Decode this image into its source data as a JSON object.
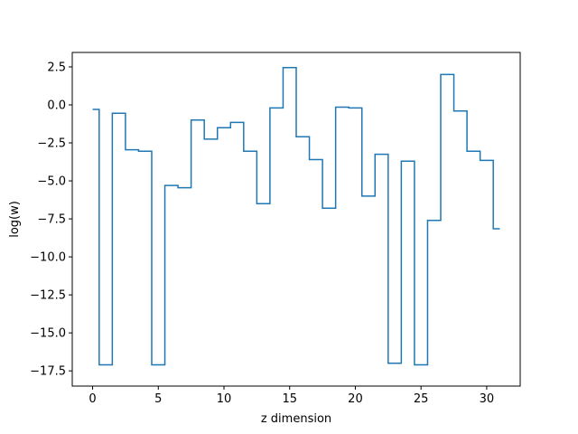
{
  "chart_data": {
    "type": "line",
    "drawstyle": "steps-mid",
    "xlabel": "z dimension",
    "ylabel": "log(w)",
    "xlim": [
      -1.55,
      32.55
    ],
    "ylim": [
      -18.5,
      3.45
    ],
    "xticks": [
      0,
      5,
      10,
      15,
      20,
      25,
      30
    ],
    "xtick_labels": [
      "0",
      "5",
      "10",
      "15",
      "20",
      "25",
      "30"
    ],
    "yticks": [
      2.5,
      0.0,
      -2.5,
      -5.0,
      -7.5,
      -10.0,
      -12.5,
      -15.0,
      -17.5
    ],
    "ytick_labels": [
      "2.5",
      "0.0",
      "−2.5",
      "−5.0",
      "−7.5",
      "−10.0",
      "−12.5",
      "−15.0",
      "−17.5"
    ],
    "grid": false,
    "color": "#1f77b4",
    "series": [
      {
        "x": [
          0,
          1,
          2,
          3,
          4,
          5,
          6,
          7,
          8,
          9,
          10,
          11,
          12,
          13,
          14,
          15,
          16,
          17,
          18,
          19,
          20,
          21,
          22,
          23,
          24,
          25,
          26,
          27,
          28,
          29,
          30,
          31
        ],
        "values": [
          -0.3,
          -17.1,
          -0.55,
          -2.95,
          -3.05,
          -17.1,
          -5.3,
          -5.45,
          -1.0,
          -2.25,
          -1.5,
          -1.15,
          -3.05,
          -6.5,
          -0.2,
          2.45,
          -2.1,
          -3.6,
          -6.8,
          -0.15,
          -0.2,
          -6.0,
          -3.25,
          -17.0,
          -3.7,
          -17.1,
          -7.6,
          2.0,
          -0.4,
          -3.05,
          -3.65,
          -8.15
        ]
      }
    ]
  }
}
